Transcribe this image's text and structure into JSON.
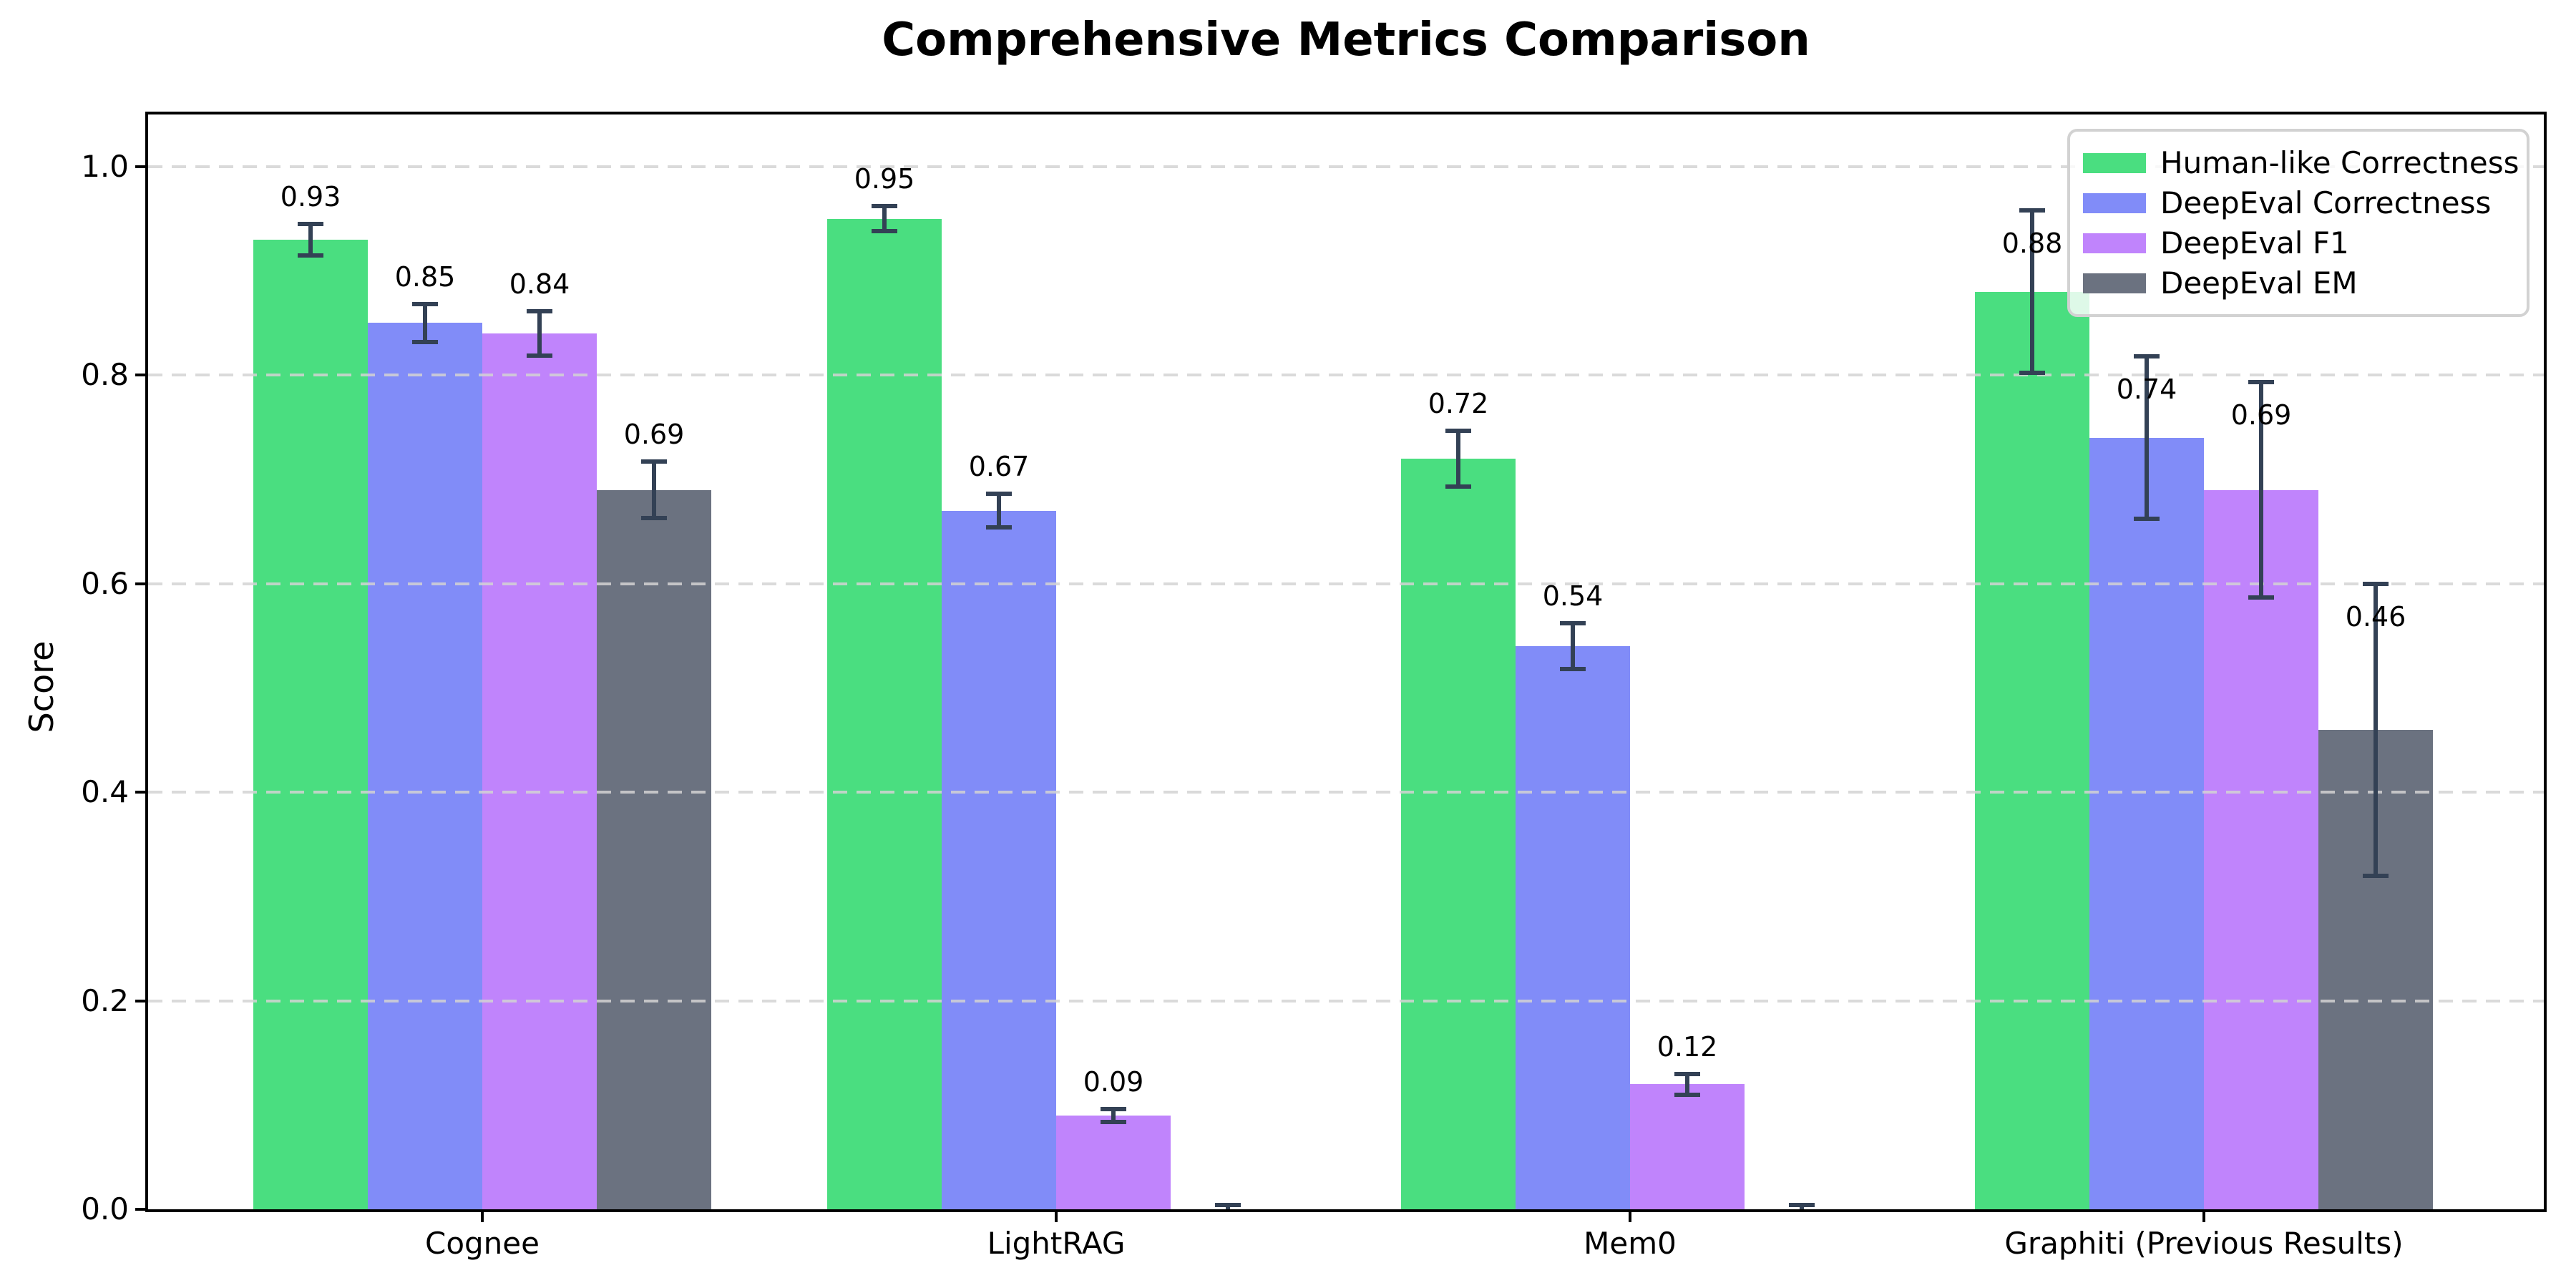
{
  "chart_data": {
    "type": "bar",
    "title": "Comprehensive Metrics Comparison",
    "ylabel": "Score",
    "categories": [
      "Cognee",
      "LightRAG",
      "Mem0",
      "Graphiti (Previous Results)"
    ],
    "series": [
      {
        "name": "Human-like Correctness",
        "color": "#4ade80",
        "values": [
          0.93,
          0.95,
          0.72,
          0.88
        ],
        "errors": [
          0.015,
          0.012,
          0.027,
          0.078
        ]
      },
      {
        "name": "DeepEval Correctness",
        "color": "#818cf8",
        "values": [
          0.85,
          0.67,
          0.54,
          0.74
        ],
        "errors": [
          0.018,
          0.016,
          0.022,
          0.078
        ]
      },
      {
        "name": "DeepEval F1",
        "color": "#c084fc",
        "values": [
          0.84,
          0.09,
          0.12,
          0.69
        ],
        "errors": [
          0.021,
          0.006,
          0.01,
          0.103
        ]
      },
      {
        "name": "DeepEval EM",
        "color": "#6b7280",
        "values": [
          0.69,
          0.0,
          0.0,
          0.46
        ],
        "errors": [
          0.027,
          0.004,
          0.004,
          0.14
        ]
      }
    ],
    "bar_value_labels": [
      [
        "0.93",
        "0.85",
        "0.84",
        "0.69"
      ],
      [
        "0.95",
        "0.67",
        "0.09",
        null
      ],
      [
        "0.72",
        "0.54",
        "0.12",
        null
      ],
      [
        "0.88",
        "0.74",
        "0.69",
        "0.46"
      ]
    ],
    "yticks": [
      "0.0",
      "0.2",
      "0.4",
      "0.6",
      "0.8",
      "1.0"
    ],
    "ylim": [
      0,
      1.05
    ],
    "grid": "horizontal-dashed",
    "legend_position": "upper-right",
    "colors": {
      "error_bar": "#334155",
      "gridline": "#d3d3d3",
      "axis": "#000000",
      "background": "#ffffff"
    }
  }
}
